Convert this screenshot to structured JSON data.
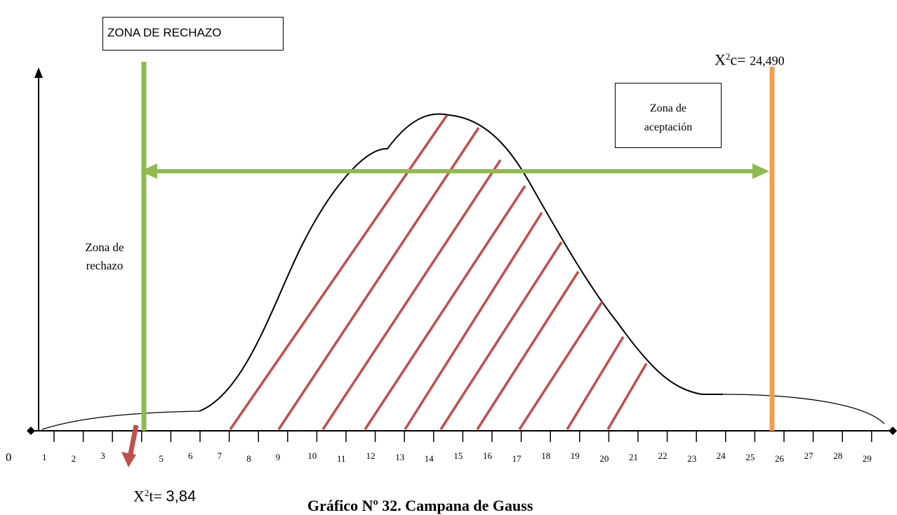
{
  "zone_box_top": "ZONA DE RECHAZO",
  "zone_accept": {
    "line1": "Zona de",
    "line2": "aceptación"
  },
  "zone_reject": {
    "line1": "Zona de",
    "line2": "rechazo"
  },
  "chi_calc": {
    "base": "X",
    "sup": "2",
    "suffix": "c= ",
    "value": "24,490"
  },
  "chi_table": {
    "base": "X",
    "sup": "2",
    "suffix": "t= ",
    "value": "3,84"
  },
  "caption": "Gráfico Nº 32. Campana de Gauss",
  "axis": {
    "origin_label": "0",
    "tick_labels": [
      "1",
      "2",
      "3",
      "4",
      "5",
      "6",
      "7",
      "8",
      "9",
      "10",
      "11",
      "12",
      "13",
      "14",
      "15",
      "16",
      "17",
      "18",
      "19",
      "20",
      "21",
      "22",
      "23",
      "24",
      "25",
      "26",
      "27",
      "28",
      "29"
    ]
  },
  "colors": {
    "green": "#8fba4f",
    "orange": "#f0a048",
    "hatch": "#c84a4a",
    "arrow_red": "#c0504d",
    "curve": "#000000"
  }
}
